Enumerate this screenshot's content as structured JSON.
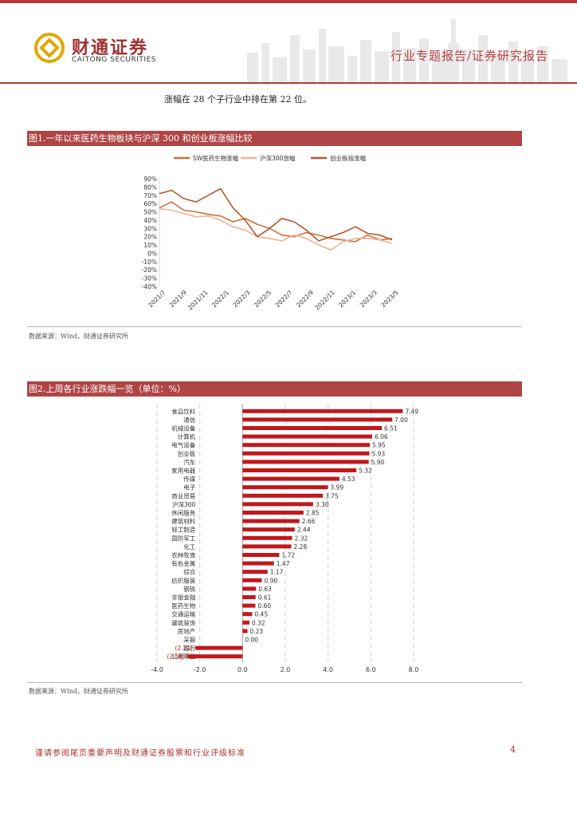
{
  "header": {
    "logo_cn": "财通证券",
    "logo_en": "CAITONG SECURITIES",
    "report_type": "行业专题报告/证券研究报告"
  },
  "intro_text": "涨幅在 28 个子行业中排在第 22 位。",
  "figure1": {
    "title": "图1.一年以来医药生物板块与沪深 300 和创业板涨幅比较",
    "source": "数据来源：Wind，财通证券研究所",
    "chart_data": {
      "type": "line",
      "title": "",
      "legend": [
        "SW医药生物涨幅",
        "沪深300涨幅",
        "创业板指涨幅"
      ],
      "x_ticks": [
        "2021/7",
        "2021/9",
        "2021/11",
        "2022/1",
        "2022/3",
        "2022/5",
        "2022/7",
        "2022/9",
        "2022/11",
        "2023/1",
        "2023/3",
        "2023/5"
      ],
      "y_ticks": [
        "90%",
        "80%",
        "70%",
        "60%",
        "50%",
        "40%",
        "30%",
        "20%",
        "10%",
        "0%",
        "-10%",
        "-20%",
        "-30%",
        "-40%"
      ],
      "ylim": [
        -40,
        90
      ],
      "series": [
        {
          "name": "SW医药生物涨幅",
          "color": "#d46e3a",
          "values": [
            55,
            62,
            52,
            50,
            47,
            45,
            38,
            42,
            35,
            30,
            22,
            20,
            25,
            22,
            18,
            16,
            14,
            22,
            16,
            18
          ]
        },
        {
          "name": "沪深300涨幅",
          "color": "#efb394",
          "values": [
            54,
            52,
            48,
            44,
            45,
            40,
            32,
            28,
            20,
            18,
            15,
            22,
            18,
            10,
            4,
            14,
            18,
            18,
            16,
            12
          ]
        },
        {
          "name": "创业板指涨幅",
          "color": "#b8572a",
          "values": [
            72,
            76,
            66,
            62,
            70,
            78,
            55,
            40,
            20,
            30,
            42,
            38,
            28,
            15,
            20,
            25,
            32,
            24,
            22,
            16
          ]
        }
      ]
    }
  },
  "figure2": {
    "title": "图2.上周各行业涨跌幅一览（单位：%）",
    "source": "数据来源：Wind，财通证券研究所",
    "chart_data": {
      "type": "bar",
      "orientation": "horizontal",
      "title": "",
      "xlim": [
        -4,
        8
      ],
      "x_ticks": [
        "-4.0",
        "-2.0",
        "0.0",
        "2.0",
        "4.0",
        "6.0",
        "8.0"
      ],
      "bar_color": "#c0181c",
      "categories": [
        "食品饮料",
        "通信",
        "机械设备",
        "计算机",
        "电气设备",
        "创业板",
        "汽车",
        "家用电器",
        "传媒",
        "电子",
        "商业贸易",
        "沪深300",
        "休闲服务",
        "建筑材料",
        "轻工制造",
        "国防军工",
        "化工",
        "农林牧渔",
        "有色金属",
        "综合",
        "纺织服装",
        "钢铁",
        "非银金融",
        "医药生物",
        "交通运输",
        "建筑装饰",
        "房地产",
        "采掘",
        "银行",
        "公用事业"
      ],
      "values": [
        7.49,
        7.0,
        6.51,
        6.06,
        5.95,
        5.93,
        5.9,
        5.32,
        4.53,
        3.99,
        3.75,
        3.3,
        2.85,
        2.66,
        2.44,
        2.32,
        2.28,
        1.72,
        1.47,
        1.17,
        0.9,
        0.63,
        0.61,
        0.6,
        0.45,
        0.32,
        0.23,
        0.0,
        -2.21,
        -2.58
      ],
      "value_labels": [
        "7.49",
        "7.00",
        "6.51",
        "6.06",
        "5.95",
        "5.93",
        "5.90",
        "5.32",
        "4.53",
        "3.99",
        "3.75",
        "3.30",
        "2.85",
        "2.66",
        "2.44",
        "2.32",
        "2.28",
        "1.72",
        "1.47",
        "1.17",
        "0.90",
        "0.63",
        "0.61",
        "0.60",
        "0.45",
        "0.32",
        "0.23",
        "0.00",
        "(2.21)",
        "(2.58)"
      ]
    }
  },
  "footer": {
    "disclaimer": "谨请参阅尾页重要声明及财通证券股票和行业评级标准",
    "page_number": "4"
  }
}
